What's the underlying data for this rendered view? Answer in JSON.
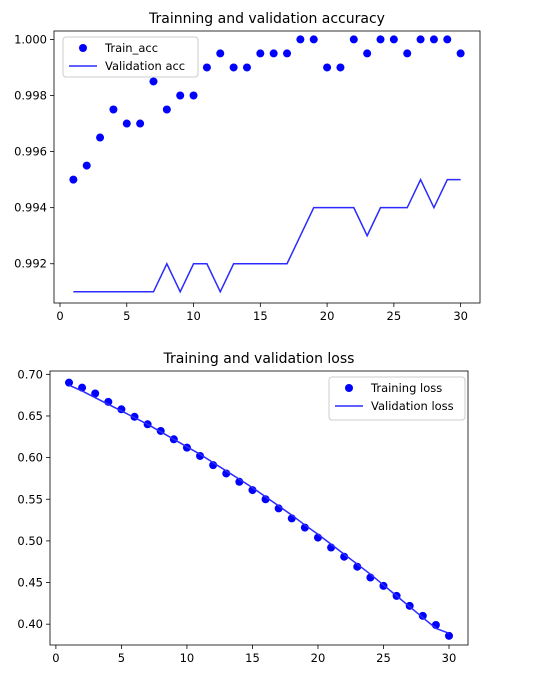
{
  "colors": {
    "train": "#0000ff",
    "val": "#2b2bff",
    "axis": "#000000"
  },
  "chart_data": [
    {
      "type": "line",
      "title": "Trainning and validation accuracy",
      "xlabel": "",
      "ylabel": "",
      "xlim": [
        -0.45,
        31.45
      ],
      "ylim": [
        0.9906,
        1.0003
      ],
      "xticks": [
        0,
        5,
        10,
        15,
        20,
        25,
        30
      ],
      "xtick_labels": [
        "0",
        "5",
        "10",
        "15",
        "20",
        "25",
        "30"
      ],
      "yticks": [
        0.992,
        0.994,
        0.996,
        0.998,
        1.0
      ],
      "ytick_labels": [
        "0.992",
        "0.994",
        "0.996",
        "0.998",
        "1.000"
      ],
      "grid": false,
      "legend_position": "upper-left",
      "x": [
        1,
        2,
        3,
        4,
        5,
        6,
        7,
        8,
        9,
        10,
        11,
        12,
        13,
        14,
        15,
        16,
        17,
        18,
        19,
        20,
        21,
        22,
        23,
        24,
        25,
        26,
        27,
        28,
        29,
        30
      ],
      "series": [
        {
          "name": "Train_acc",
          "style": "points",
          "values": [
            0.995,
            0.9955,
            0.9965,
            0.9975,
            0.997,
            0.997,
            0.9985,
            0.9975,
            0.998,
            0.998,
            0.999,
            0.9995,
            0.999,
            0.999,
            0.9995,
            0.9995,
            0.9995,
            1.0,
            1.0,
            0.999,
            0.999,
            1.0,
            0.9995,
            1.0,
            1.0,
            0.9995,
            1.0,
            1.0,
            1.0,
            0.9995
          ]
        },
        {
          "name": "Validation acc",
          "style": "line",
          "values": [
            0.991,
            0.991,
            0.991,
            0.991,
            0.991,
            0.991,
            0.991,
            0.992,
            0.991,
            0.992,
            0.992,
            0.991,
            0.992,
            0.992,
            0.992,
            0.992,
            0.992,
            0.993,
            0.994,
            0.994,
            0.994,
            0.994,
            0.993,
            0.994,
            0.994,
            0.994,
            0.995,
            0.994,
            0.995,
            0.995
          ]
        }
      ]
    },
    {
      "type": "line",
      "title": "Training and validation loss",
      "xlabel": "",
      "ylabel": "",
      "xlim": [
        -0.45,
        31.45
      ],
      "ylim": [
        0.375,
        0.704
      ],
      "xticks": [
        0,
        5,
        10,
        15,
        20,
        25,
        30
      ],
      "xtick_labels": [
        "0",
        "5",
        "10",
        "15",
        "20",
        "25",
        "30"
      ],
      "yticks": [
        0.4,
        0.45,
        0.5,
        0.55,
        0.6,
        0.65,
        0.7
      ],
      "ytick_labels": [
        "0.40",
        "0.45",
        "0.50",
        "0.55",
        "0.60",
        "0.65",
        "0.70"
      ],
      "grid": false,
      "legend_position": "upper-right",
      "x": [
        1,
        2,
        3,
        4,
        5,
        6,
        7,
        8,
        9,
        10,
        11,
        12,
        13,
        14,
        15,
        16,
        17,
        18,
        19,
        20,
        21,
        22,
        23,
        24,
        25,
        26,
        27,
        28,
        29,
        30
      ],
      "series": [
        {
          "name": "Training loss",
          "style": "points",
          "values": [
            0.69,
            0.684,
            0.677,
            0.667,
            0.658,
            0.649,
            0.64,
            0.632,
            0.622,
            0.612,
            0.602,
            0.591,
            0.581,
            0.571,
            0.561,
            0.55,
            0.539,
            0.527,
            0.516,
            0.504,
            0.492,
            0.481,
            0.469,
            0.456,
            0.446,
            0.434,
            0.422,
            0.41,
            0.399,
            0.386
          ]
        },
        {
          "name": "Validation loss",
          "style": "line",
          "values": [
            0.687,
            0.68,
            0.672,
            0.664,
            0.656,
            0.648,
            0.64,
            0.631,
            0.622,
            0.613,
            0.604,
            0.594,
            0.584,
            0.574,
            0.564,
            0.553,
            0.542,
            0.531,
            0.519,
            0.508,
            0.496,
            0.484,
            0.472,
            0.46,
            0.447,
            0.434,
            0.421,
            0.408,
            0.395,
            0.389
          ]
        }
      ]
    }
  ]
}
